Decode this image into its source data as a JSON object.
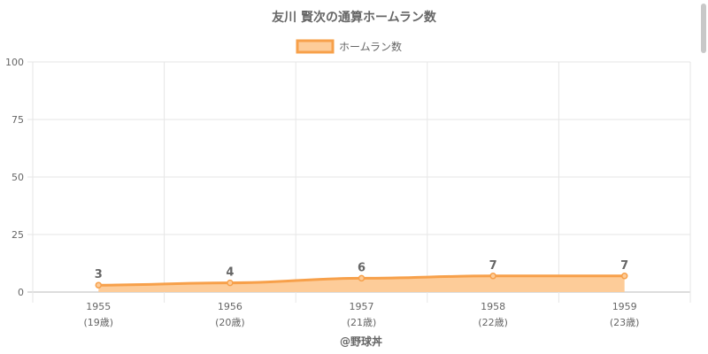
{
  "chart_data": {
    "type": "area",
    "title": "友川 賢次の通算ホームラン数",
    "categories": [
      "1955",
      "1956",
      "1957",
      "1958",
      "1959"
    ],
    "sublabels": [
      "(19歳)",
      "(20歳)",
      "(21歳)",
      "(22歳)",
      "(23歳)"
    ],
    "series": [
      {
        "name": "ホームラン数",
        "values": [
          3,
          4,
          6,
          7,
          7
        ]
      }
    ],
    "ylim": [
      0,
      100
    ],
    "yticks": [
      "0",
      "25",
      "50",
      "75",
      "100"
    ],
    "legend_position": "top",
    "grid": true
  },
  "credit": "@野球丼",
  "colors": {
    "line": "#f7a04a",
    "fill": "#fdcc99",
    "grid": "#e6e6e6",
    "text": "#666666"
  }
}
